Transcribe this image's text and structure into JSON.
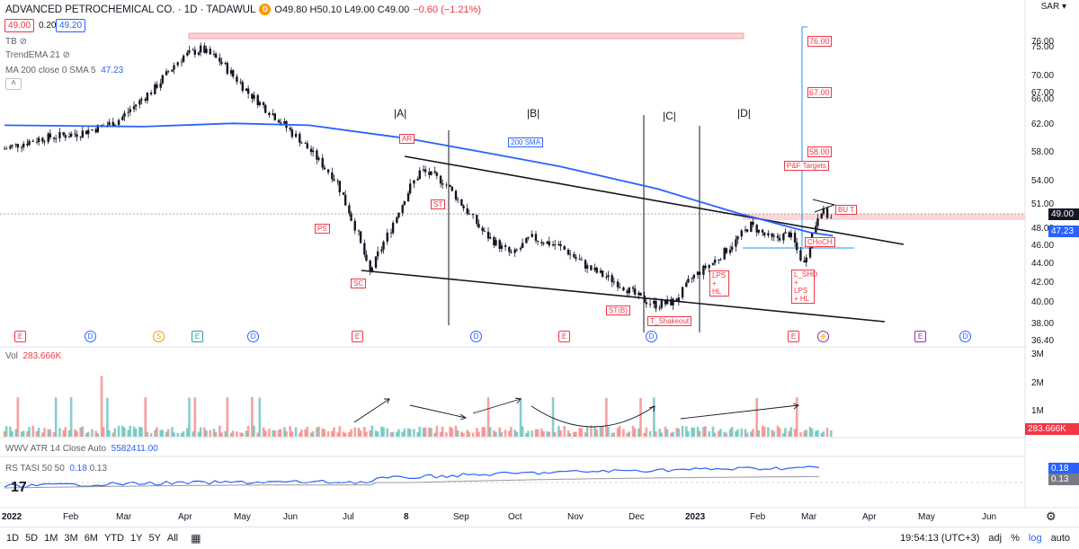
{
  "header": {
    "title": "ADVANCED PETROCHEMICAL CO. · 1D · TADAWUL",
    "badge": "D",
    "ohlc": "O49.80 H50.10 L49.00 C49.00",
    "change": "−0.60 (−1.21%)",
    "pill_bid": "49.00",
    "spread": "0.20",
    "pill_ask": "49.20"
  },
  "indicators": {
    "tb": "TB",
    "trend_ema": "TrendEMA 21",
    "ma": "MA 200 close 0 SMA 5",
    "ma_value": "47.23",
    "vol_label": "Vol",
    "vol_value": "283.666K",
    "atr_label": "WWV ATR 14 Close Auto",
    "atr_value": "5582411.00",
    "rs_label": "RS TASI 50 50",
    "rs_value1": "0.18",
    "rs_value2": "0.13"
  },
  "currency": "SAR",
  "colors": {
    "up": "#26a69a",
    "down": "#ef5350",
    "sma": "#2962ff",
    "annotation": "#f23645",
    "target_line": "#2196f3"
  },
  "chart_data": {
    "type": "candlestick",
    "title": "ADVANCED PETROCHEMICAL CO. · 1D · TADAWUL",
    "y_scale": "log",
    "ylim": [
      36.4,
      79
    ],
    "price_ticks": [
      "76.00",
      "75.00",
      "70.00",
      "67.00",
      "66.00",
      "62.00",
      "58.00",
      "54.00",
      "51.00",
      "48.00",
      "46.00",
      "44.00",
      "42.00",
      "40.00",
      "38.00",
      "36.40"
    ],
    "target_ticks": [
      "76.00",
      "67.00",
      "58.00"
    ],
    "x_ticks": [
      "2022",
      "Feb",
      "Mar",
      "Apr",
      "May",
      "Jun",
      "Jul",
      "8",
      "Sep",
      "Oct",
      "Nov",
      "Dec",
      "2023",
      "Feb",
      "Mar",
      "Apr",
      "May",
      "Jun"
    ],
    "last_price": "49.00",
    "sma_last": "47.23",
    "price_path": [
      [
        "2022-01-01",
        58.5
      ],
      [
        "2022-01-20",
        60.0
      ],
      [
        "2022-02-10",
        60.8
      ],
      [
        "2022-03-01",
        62.5
      ],
      [
        "2022-03-20",
        67.5
      ],
      [
        "2022-04-05",
        73.5
      ],
      [
        "2022-04-15",
        74.8
      ],
      [
        "2022-04-25",
        72.5
      ],
      [
        "2022-05-10",
        67.0
      ],
      [
        "2022-05-25",
        63.0
      ],
      [
        "2022-06-10",
        58.5
      ],
      [
        "2022-06-25",
        54.0
      ],
      [
        "2022-07-05",
        48.0
      ],
      [
        "2022-07-12",
        43.0
      ],
      [
        "2022-07-20",
        46.5
      ],
      [
        "2022-08-01",
        52.5
      ],
      [
        "2022-08-08",
        55.5
      ],
      [
        "2022-08-20",
        54.0
      ],
      [
        "2022-08-28",
        51.5
      ],
      [
        "2022-09-10",
        47.5
      ],
      [
        "2022-09-25",
        45.0
      ],
      [
        "2022-10-05",
        47.0
      ],
      [
        "2022-10-20",
        46.0
      ],
      [
        "2022-11-05",
        43.5
      ],
      [
        "2022-11-20",
        42.0
      ],
      [
        "2022-12-01",
        40.5
      ],
      [
        "2022-12-10",
        39.8
      ],
      [
        "2022-12-20",
        40.2
      ],
      [
        "2022-12-28",
        42.5
      ],
      [
        "2023-01-10",
        44.5
      ],
      [
        "2023-01-20",
        46.5
      ],
      [
        "2023-01-28",
        48.5
      ],
      [
        "2023-02-08",
        46.8
      ],
      [
        "2023-02-18",
        47.5
      ],
      [
        "2023-02-25",
        44.0
      ],
      [
        "2023-03-01",
        47.0
      ],
      [
        "2023-03-06",
        50.5
      ],
      [
        "2023-03-12",
        49.0
      ]
    ],
    "sma200_path": [
      [
        "2022-01-01",
        62.0
      ],
      [
        "2022-03-15",
        61.8
      ],
      [
        "2022-05-01",
        62.3
      ],
      [
        "2022-06-10",
        62.0
      ],
      [
        "2022-08-01",
        60.0
      ],
      [
        "2022-09-10",
        58.0
      ],
      [
        "2022-10-20",
        56.0
      ],
      [
        "2022-12-10",
        53.0
      ],
      [
        "2023-01-20",
        50.0
      ],
      [
        "2023-02-28",
        47.6
      ],
      [
        "2023-03-12",
        47.23
      ]
    ],
    "annotations": [
      "AR",
      "ST",
      "PS",
      "SC",
      "ST(B)",
      "T_Shakeout",
      "LPS + HL",
      "CHoCH",
      "L_SHO + LPS + HL",
      "BU T",
      "P&F Targets",
      "200 SMA"
    ],
    "phases": [
      "|A|",
      "|B|",
      "|C|",
      "|D|"
    ],
    "events": [
      "E",
      "D",
      "S",
      "E",
      "D",
      "E",
      "D",
      "E",
      "D",
      "E",
      "D",
      "E",
      "E",
      "D"
    ],
    "volume": {
      "axis_ticks": [
        "3M",
        "2M",
        "1M"
      ],
      "last": "283.666K"
    },
    "rs": {
      "values": [
        "0.18",
        "0.13"
      ]
    }
  },
  "bottom_bar": {
    "timeframes": [
      "1D",
      "5D",
      "1M",
      "3M",
      "6M",
      "YTD",
      "1Y",
      "5Y",
      "All"
    ],
    "time": "19:54:13 (UTC+3)",
    "options": [
      "adj",
      "%",
      "log",
      "auto"
    ]
  }
}
